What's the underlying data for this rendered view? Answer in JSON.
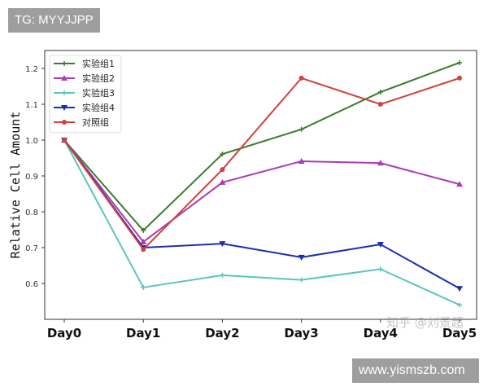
{
  "watermarks": {
    "top_left": "TG: MYYJJPP",
    "bottom_right": "www.yismszb.com",
    "zhihu": "知乎 @刘景超"
  },
  "chart_data": {
    "type": "line",
    "title": "",
    "xlabel": "",
    "ylabel": "Relative Cell Amount",
    "categories": [
      "Day0",
      "Day1",
      "Day2",
      "Day3",
      "Day4",
      "Day5"
    ],
    "ylim": [
      0.5,
      1.25
    ],
    "yticks": [
      "0.6",
      "0.7",
      "0.8",
      "0.9",
      "1.0",
      "1.1",
      "1.2"
    ],
    "grid": false,
    "legend_position": "top-left",
    "series": [
      {
        "name": "实验组1",
        "color": "#3a7d2c",
        "marker": "plus",
        "values": [
          1.0,
          0.748,
          0.961,
          1.03,
          1.134,
          1.216
        ]
      },
      {
        "name": "实验组2",
        "color": "#a83cb4",
        "marker": "triangle-up",
        "values": [
          1.0,
          0.716,
          0.882,
          0.941,
          0.936,
          0.877
        ]
      },
      {
        "name": "实验组3",
        "color": "#5cc4bc",
        "marker": "plus",
        "values": [
          1.0,
          0.589,
          0.623,
          0.61,
          0.64,
          0.54
        ]
      },
      {
        "name": "实验组4",
        "color": "#1c2fb0",
        "marker": "triangle-down",
        "values": [
          1.0,
          0.7,
          0.711,
          0.673,
          0.709,
          0.586
        ]
      },
      {
        "name": "对照组",
        "color": "#d0423c",
        "marker": "circle",
        "values": [
          1.0,
          0.695,
          0.918,
          1.173,
          1.1,
          1.173
        ]
      }
    ]
  }
}
